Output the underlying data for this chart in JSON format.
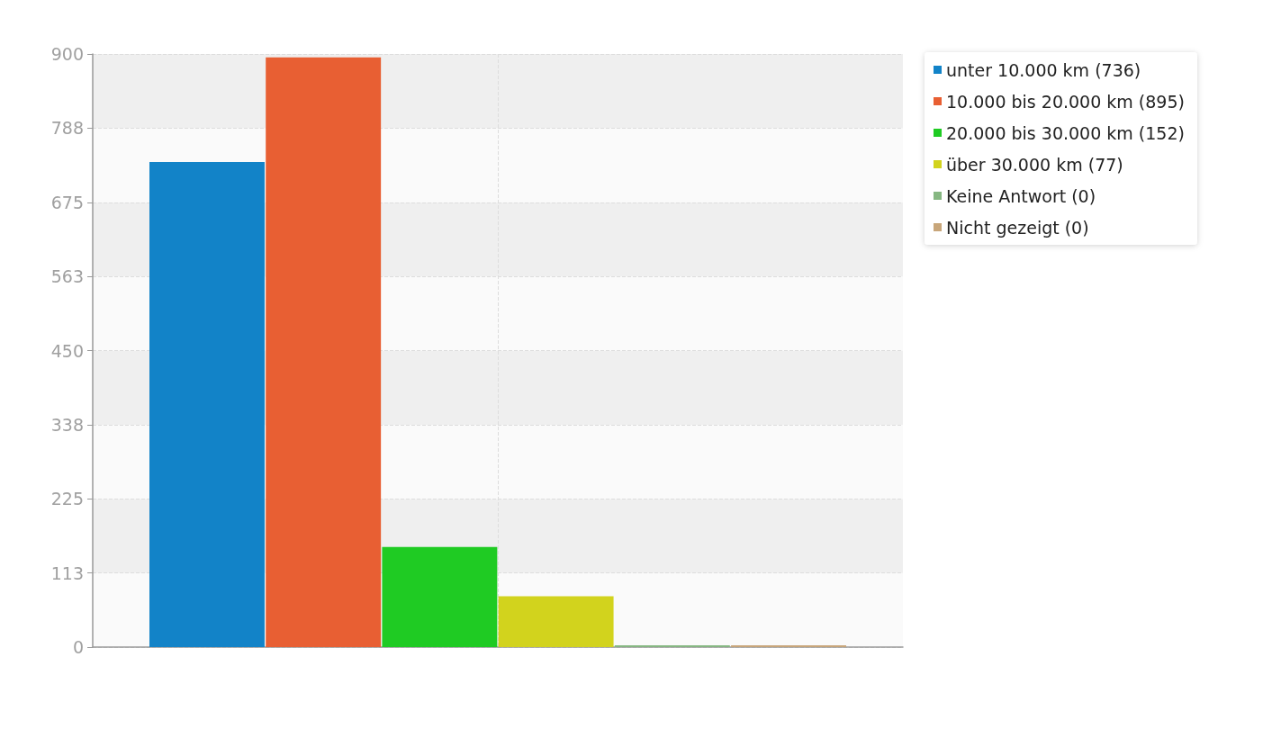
{
  "chart_data": {
    "type": "bar",
    "categories": [
      null
    ],
    "series": [
      {
        "name": "unter 10.000 km (736)",
        "color": "#1283c8",
        "values": [
          736
        ]
      },
      {
        "name": "10.000 bis 20.000 km (895)",
        "color": "#e85f33",
        "values": [
          895
        ]
      },
      {
        "name": "20.000 bis 30.000 km (152)",
        "color": "#1fcb23",
        "values": [
          152
        ]
      },
      {
        "name": "über 30.000 km (77)",
        "color": "#d2d31d",
        "values": [
          77
        ]
      },
      {
        "name": "Keine Antwort (0)",
        "color": "#86b782",
        "values": [
          0
        ]
      },
      {
        "name": "Nicht gezeigt (0)",
        "color": "#c8a67a",
        "values": [
          0
        ]
      }
    ],
    "ylim": [
      0,
      900
    ],
    "yticks": [
      0,
      {
        "value": 112.5,
        "label": "113"
      },
      225,
      {
        "value": 337.5,
        "label": "338"
      },
      450,
      {
        "value": 562.5,
        "label": "563"
      },
      675,
      {
        "value": 787.5,
        "label": "788"
      },
      900
    ],
    "grid": true,
    "legend": "top right",
    "tick_labels": "y"
  }
}
